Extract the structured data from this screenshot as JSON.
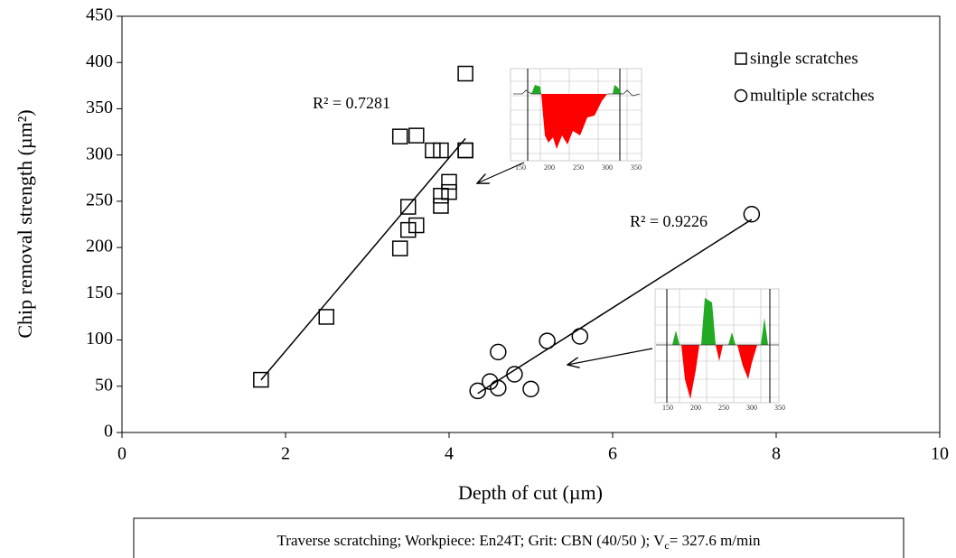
{
  "chart_data": {
    "type": "scatter",
    "xlabel": "Depth of cut (µm)",
    "ylabel": "Chip removal strength (µm²)",
    "xlim": [
      0,
      10
    ],
    "xticks": [
      0,
      2,
      4,
      6,
      8,
      10
    ],
    "ylim": [
      0,
      450
    ],
    "yticks": [
      0,
      50,
      100,
      150,
      200,
      250,
      300,
      350,
      400,
      450
    ],
    "grid": false,
    "legend": "upper right",
    "series": [
      {
        "name": "single scratches",
        "color": "#000000",
        "marker": "square",
        "fit_label": "R² = 0.7281",
        "x": [
          1.7,
          2.5,
          3.4,
          3.6,
          3.4,
          3.5,
          3.5,
          3.6,
          3.8,
          3.9,
          3.9,
          3.9,
          4.0,
          4.0,
          4.2,
          4.2,
          4.2
        ],
        "values": [
          57,
          125,
          320,
          321,
          199,
          244,
          219,
          224,
          305,
          305,
          256,
          245,
          271,
          260,
          305,
          305,
          388
        ]
      },
      {
        "name": "multiple scratches",
        "color": "#000000",
        "marker": "circle",
        "fit_label": "R² = 0.9226",
        "x": [
          4.35,
          4.5,
          4.6,
          4.6,
          4.8,
          5.0,
          5.2,
          5.6,
          7.7
        ],
        "values": [
          45,
          55,
          48,
          87,
          63,
          47,
          99,
          104,
          236
        ]
      }
    ],
    "insets": [
      {
        "x_labels": [
          "150",
          "200",
          "250",
          "300",
          "350"
        ]
      },
      {
        "x_labels": [
          "150",
          "200",
          "250",
          "300",
          "350"
        ]
      }
    ],
    "note": {
      "text": "Traverse scratching; Workpiece: En24T; Grit: CBN (40/50 ); V",
      "subscript": "c",
      "tail": "= 327.6 m/min"
    }
  }
}
